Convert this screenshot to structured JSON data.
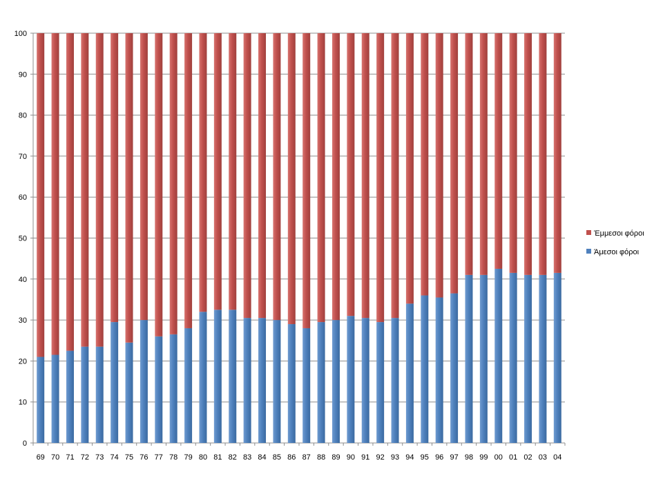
{
  "chart_data": {
    "type": "bar",
    "stacked": true,
    "percent_stacked": true,
    "categories": [
      "69",
      "70",
      "71",
      "72",
      "73",
      "74",
      "75",
      "76",
      "77",
      "78",
      "79",
      "80",
      "81",
      "82",
      "83",
      "84",
      "85",
      "86",
      "87",
      "88",
      "89",
      "90",
      "91",
      "92",
      "93",
      "94",
      "95",
      "96",
      "97",
      "98",
      "99",
      "00",
      "01",
      "02",
      "03",
      "04"
    ],
    "series": [
      {
        "name": "Άμεσοι φόροι",
        "color": "#4f81bd",
        "values": [
          21,
          21.5,
          22.5,
          23.5,
          23.5,
          29.5,
          24.5,
          30,
          26,
          26.5,
          28,
          32,
          32.5,
          32.5,
          30.5,
          30.5,
          30,
          29,
          28,
          29.5,
          30,
          31,
          30.5,
          29.5,
          30.5,
          34,
          36,
          35.5,
          36.5,
          41,
          41,
          42.5,
          41.5,
          41,
          41,
          41.5
        ]
      },
      {
        "name": "Έμμεσοι φόροι",
        "color": "#c0504d",
        "values": [
          79,
          78.5,
          77.5,
          76.5,
          76.5,
          70.5,
          75.5,
          70,
          74,
          73.5,
          72,
          68,
          67.5,
          67.5,
          69.5,
          69.5,
          70,
          71,
          72,
          70.5,
          70,
          69,
          69.5,
          70.5,
          69.5,
          66,
          64,
          64.5,
          63.5,
          59,
          59,
          57.5,
          58.5,
          59,
          59,
          58.5
        ]
      }
    ],
    "ylim": [
      0,
      100
    ],
    "yticks": [
      0,
      10,
      20,
      30,
      40,
      50,
      60,
      70,
      80,
      90,
      100
    ],
    "grid": true,
    "legend_position": "right",
    "legend_order": [
      "Έμμεσοι φόροι",
      "Άμεσοι φόροι"
    ],
    "title": "",
    "xlabel": "",
    "ylabel": ""
  }
}
